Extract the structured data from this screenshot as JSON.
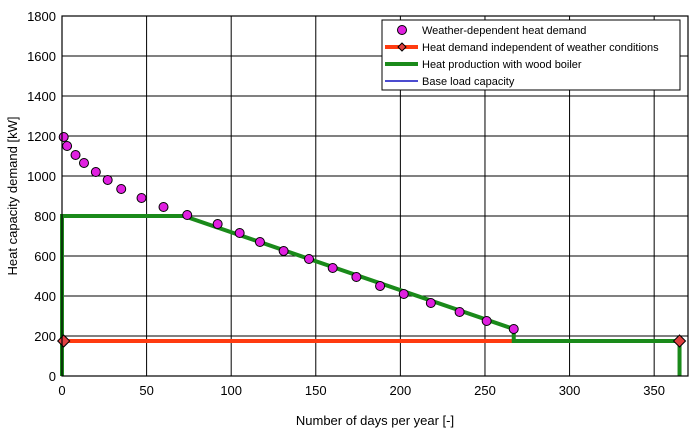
{
  "chart_data": {
    "type": "line",
    "xlabel": "Number of days per year [-]",
    "ylabel": "Heat capacity demand [kW]",
    "xlim": [
      0,
      370
    ],
    "ylim": [
      0,
      1800
    ],
    "x_ticks": [
      0,
      50,
      100,
      150,
      200,
      250,
      300,
      350
    ],
    "y_ticks": [
      0,
      200,
      400,
      600,
      800,
      1000,
      1200,
      1400,
      1600,
      1800
    ],
    "grid": true,
    "legend_position": "top-right",
    "series": [
      {
        "name": "Weather-dependent heat demand",
        "style": "markers",
        "color": "#e020e0",
        "x": [
          1,
          3,
          8,
          13,
          20,
          27,
          35,
          47,
          60,
          74,
          92,
          105,
          117,
          131,
          146,
          160,
          174,
          188,
          202,
          218,
          235,
          251,
          267
        ],
        "y": [
          1195,
          1150,
          1105,
          1065,
          1020,
          980,
          935,
          890,
          845,
          805,
          760,
          715,
          670,
          625,
          585,
          540,
          495,
          450,
          410,
          365,
          320,
          275,
          235
        ]
      },
      {
        "name": "Heat demand independent of weather conditions",
        "style": "line",
        "color": "#ff3b10",
        "x": [
          0,
          267
        ],
        "y": [
          175,
          175
        ],
        "end_markers": [
          {
            "x": 1,
            "y": 175
          },
          {
            "x": 365,
            "y": 175
          }
        ]
      },
      {
        "name": "Heat production with wood boiler",
        "style": "line",
        "color": "#1a8a1a",
        "x": [
          0,
          0,
          72,
          267,
          267,
          365,
          365
        ],
        "y": [
          0,
          800,
          800,
          235,
          175,
          175,
          0
        ]
      },
      {
        "name": "Base load capacity",
        "style": "line",
        "color": "#1010c0",
        "x": [],
        "y": []
      }
    ]
  }
}
